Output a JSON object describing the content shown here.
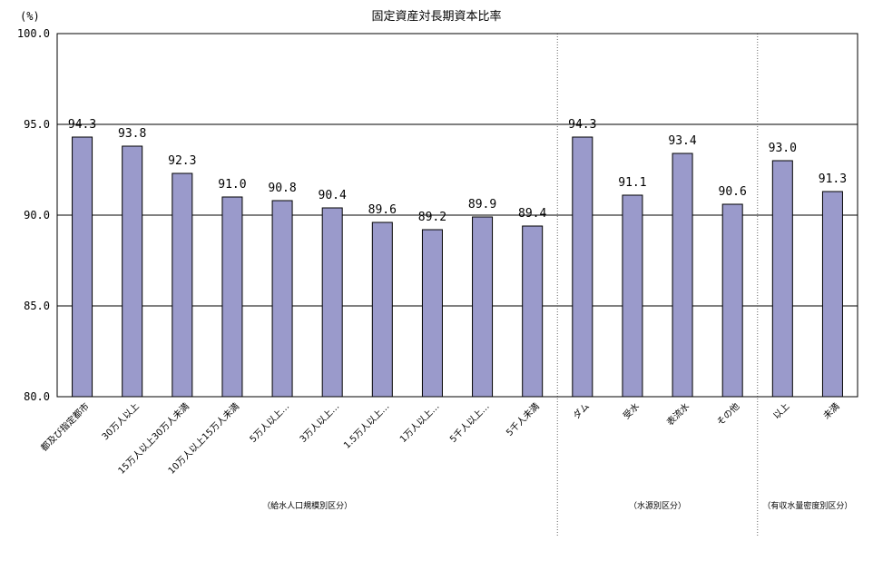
{
  "chart_data": {
    "type": "bar",
    "title": "固定資産対長期資本比率",
    "ylabel": "(%)",
    "ylim": [
      80,
      100
    ],
    "yticks": [
      "100.0",
      "95.0",
      "90.0",
      "85.0",
      "80.0"
    ],
    "ytick_values": [
      100,
      95,
      90,
      85,
      80
    ],
    "grid": true,
    "bar_color": "#9a9acb",
    "categories": [
      "都及び指定都市",
      "30万人以上",
      "15万人以上30万人未満",
      "10万人以上15万人未満",
      "5万人以上…",
      "3万人以上…",
      "1.5万人以上…",
      "1万人以上…",
      "5千人以上…",
      "5千人未満",
      "ダム",
      "受水",
      "表流水",
      "その他",
      "以上",
      "未満"
    ],
    "values": [
      94.3,
      93.8,
      92.3,
      91.0,
      90.8,
      90.4,
      89.6,
      89.2,
      89.9,
      89.4,
      94.3,
      91.1,
      93.4,
      90.6,
      93.0,
      91.3
    ],
    "value_labels": [
      "94.3",
      "93.8",
      "92.3",
      "91.0",
      "90.8",
      "90.4",
      "89.6",
      "89.2",
      "89.9",
      "89.4",
      "94.3",
      "91.1",
      "93.4",
      "90.6",
      "93.0",
      "91.3"
    ],
    "groups": [
      {
        "label": "（給水人口規模別区分）",
        "count": 10
      },
      {
        "label": "（水源別区分）",
        "count": 4
      },
      {
        "label": "（有収水量密度別区分）",
        "count": 2
      }
    ]
  }
}
